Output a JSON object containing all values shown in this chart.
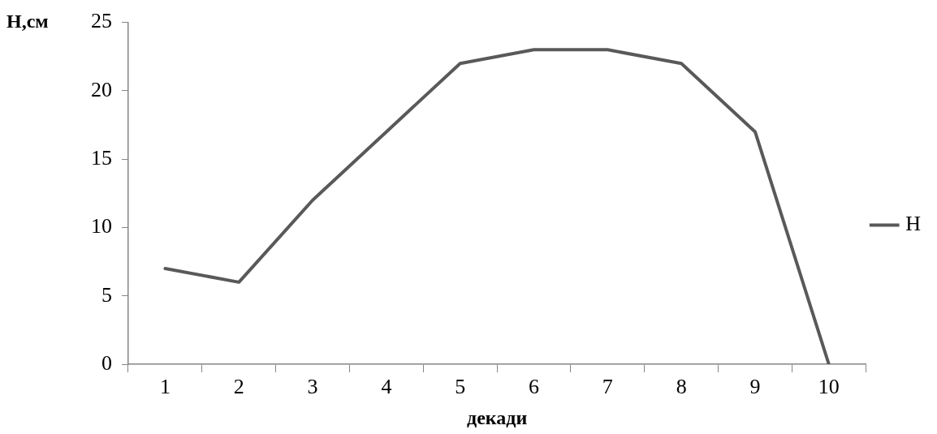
{
  "chart_data": {
    "type": "line",
    "xlabel": "декади",
    "ylabel": "Н,см",
    "categories": [
      "1",
      "2",
      "3",
      "4",
      "5",
      "6",
      "7",
      "8",
      "9",
      "10"
    ],
    "series": [
      {
        "name": "Н",
        "color": "#595959",
        "values": [
          7,
          6,
          12,
          17,
          22,
          23,
          23,
          22,
          17,
          0
        ]
      }
    ],
    "ylim": [
      0,
      25
    ],
    "yticks": [
      0,
      5,
      10,
      15,
      20,
      25
    ],
    "grid": false,
    "legend": "right",
    "marker": "none",
    "line_style": "solid"
  }
}
